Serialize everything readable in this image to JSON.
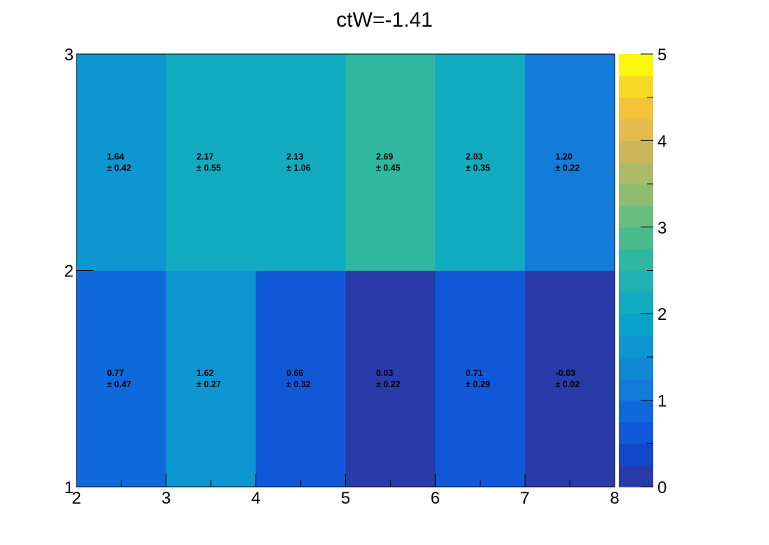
{
  "chart_data": {
    "type": "heatmap",
    "title": "ctW=-1.41",
    "xlabel": "",
    "ylabel": "",
    "x_edges": [
      2,
      3,
      4,
      5,
      6,
      7,
      8
    ],
    "y_edges": [
      1,
      2,
      3
    ],
    "xlim": [
      2,
      8
    ],
    "ylim": [
      1,
      3
    ],
    "x_ticks": [
      "2",
      "3",
      "4",
      "5",
      "6",
      "7",
      "8"
    ],
    "y_ticks": [
      "1",
      "2",
      "3"
    ],
    "cells": [
      {
        "row": 0,
        "col": 0,
        "value": 0.77,
        "value_label": "0.77",
        "error_label": "± 0.47"
      },
      {
        "row": 0,
        "col": 1,
        "value": 1.62,
        "value_label": "1.62",
        "error_label": "± 0.27"
      },
      {
        "row": 0,
        "col": 2,
        "value": 0.66,
        "value_label": "0.66",
        "error_label": "± 0.32"
      },
      {
        "row": 0,
        "col": 3,
        "value": 0.03,
        "value_label": "0.03",
        "error_label": "± 0.22"
      },
      {
        "row": 0,
        "col": 4,
        "value": 0.71,
        "value_label": "0.71",
        "error_label": "± 0.29"
      },
      {
        "row": 0,
        "col": 5,
        "value": -0.03,
        "value_label": "-0.03",
        "error_label": "± 0.02"
      },
      {
        "row": 1,
        "col": 0,
        "value": 1.64,
        "value_label": "1.64",
        "error_label": "± 0.42"
      },
      {
        "row": 1,
        "col": 1,
        "value": 2.17,
        "value_label": "2.17",
        "error_label": "± 0.55"
      },
      {
        "row": 1,
        "col": 2,
        "value": 2.13,
        "value_label": "2.13",
        "error_label": "± 1.06"
      },
      {
        "row": 1,
        "col": 3,
        "value": 2.69,
        "value_label": "2.69",
        "error_label": "± 0.45"
      },
      {
        "row": 1,
        "col": 4,
        "value": 2.03,
        "value_label": "2.03",
        "error_label": "± 0.35"
      },
      {
        "row": 1,
        "col": 5,
        "value": 1.2,
        "value_label": "1.20",
        "error_label": "± 0.22"
      }
    ],
    "colorbar": {
      "range": [
        0,
        5
      ],
      "levels": 20,
      "ticks": [
        "0",
        "1",
        "2",
        "3",
        "4",
        "5"
      ],
      "palette": [
        "#283ba8",
        "#1447c8",
        "#1158d8",
        "#1069da",
        "#137bd8",
        "#1089d3",
        "#0d96cf",
        "#0aa2ca",
        "#12abbf",
        "#22b1b2",
        "#2fb79f",
        "#4bbb8f",
        "#69bd7f",
        "#8ebd72",
        "#adbb66",
        "#cdb55c",
        "#e4bb4c",
        "#f5c338",
        "#f7da25",
        "#fbf80f"
      ]
    },
    "grid": false,
    "legend": "none"
  }
}
